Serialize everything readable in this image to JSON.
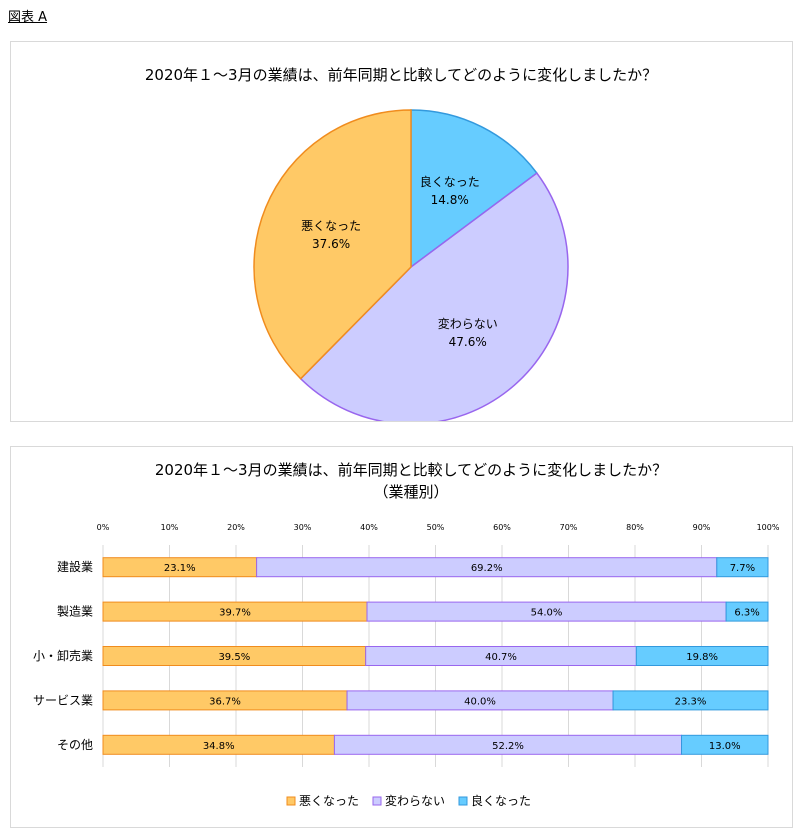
{
  "figure_label": "図表 A",
  "colors": {
    "worse_fill": "#ffc966",
    "worse_stroke": "#f08c1e",
    "same_fill": "#ccccff",
    "same_stroke": "#9966ee",
    "better_fill": "#66ccff",
    "better_stroke": "#3399dd"
  },
  "chart_data": [
    {
      "type": "pie",
      "title": "2020年１～3月の業績は、前年同期と比較してどのように変化しましたか？",
      "slices": [
        {
          "label": "良くなった",
          "value": 14.8,
          "value_label": "14.8%",
          "color_key": "better"
        },
        {
          "label": "変わらない",
          "value": 47.6,
          "value_label": "47.6%",
          "color_key": "same"
        },
        {
          "label": "悪くなった",
          "value": 37.6,
          "value_label": "37.6%",
          "color_key": "worse"
        }
      ],
      "start": "12 o'clock",
      "direction": "clockwise"
    },
    {
      "type": "bar",
      "stacked": "100%",
      "orientation": "horizontal",
      "title": "2020年１～3月の業績は、前年同期と比較してどのように変化しましたか？",
      "subtitle": "（業種別）",
      "xlim": [
        0,
        100
      ],
      "x_ticks": [
        "0%",
        "10%",
        "20%",
        "30%",
        "40%",
        "50%",
        "60%",
        "70%",
        "80%",
        "90%",
        "100%"
      ],
      "grid": true,
      "categories": [
        "建設業",
        "製造業",
        "小・卸売業",
        "サービス業",
        "その他"
      ],
      "series": [
        {
          "name": "悪くなった",
          "color_key": "worse",
          "values": [
            23.1,
            39.7,
            39.5,
            36.7,
            34.8
          ],
          "labels": [
            "23.1%",
            "39.7%",
            "39.5%",
            "36.7%",
            "34.8%"
          ]
        },
        {
          "name": "変わらない",
          "color_key": "same",
          "values": [
            69.2,
            54.0,
            40.7,
            40.0,
            52.2
          ],
          "labels": [
            "69.2%",
            "54.0%",
            "40.7%",
            "40.0%",
            "52.2%"
          ]
        },
        {
          "name": "良くなった",
          "color_key": "better",
          "values": [
            7.7,
            6.3,
            19.8,
            23.3,
            13.0
          ],
          "labels": [
            "7.7%",
            "6.3%",
            "19.8%",
            "23.3%",
            "13.0%"
          ]
        }
      ],
      "legend_position": "bottom"
    }
  ]
}
